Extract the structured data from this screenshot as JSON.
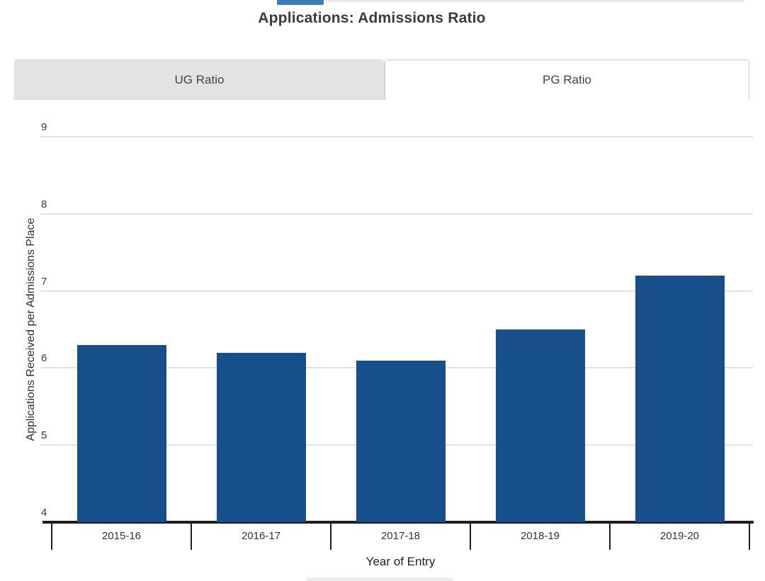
{
  "page": {
    "title": "Applications: Admissions Ratio"
  },
  "tabs": [
    {
      "label": "UG Ratio",
      "active": false
    },
    {
      "label": "PG Ratio",
      "active": true
    }
  ],
  "colors": {
    "bar": "#174f8d",
    "top_accent": "#3d7db3",
    "axis": "#1e1e1e",
    "grid": "#e2e2e2",
    "inactive_tab_bg": "#e3e3e3",
    "active_tab_bg": "#ffffff"
  },
  "chart_data": {
    "type": "bar",
    "title": "Applications: Admissions Ratio",
    "categories": [
      "2015-16",
      "2016-17",
      "2017-18",
      "2018-19",
      "2019-20"
    ],
    "values": [
      6.3,
      6.2,
      6.1,
      6.5,
      7.2
    ],
    "xlabel": "Year of Entry",
    "ylabel": "Applications Received per Admissions Place",
    "ylim": [
      4,
      9
    ],
    "yticks": [
      4,
      5,
      6,
      7,
      8,
      9
    ],
    "grid": true,
    "legend": "none",
    "bar_color": "#174f8d"
  }
}
